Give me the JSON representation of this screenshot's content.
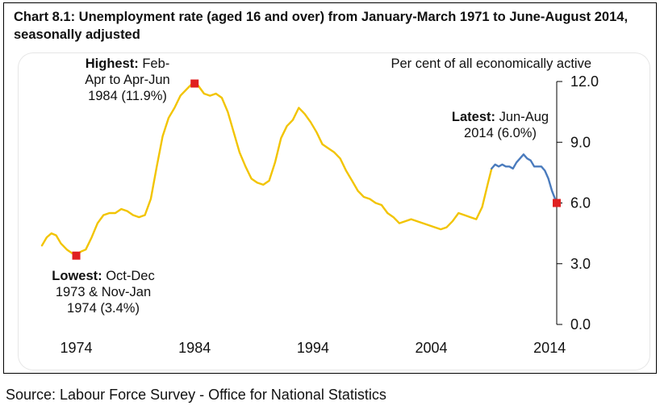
{
  "title": "Chart 8.1: Unemployment rate (aged 16 and over) from January-March 1971 to June-August 2014, seasonally adjusted",
  "source": "Source: Labour Force Survey - Office for National Statistics",
  "colors": {
    "series_main": "#f2c400",
    "series_latest": "#4a7bbd",
    "marker": "#e02020",
    "axis": "#000000"
  },
  "chart_data": {
    "type": "line",
    "title": "Chart 8.1: Unemployment rate (aged 16 and over) from January-March 1971 to June-August 2014, seasonally adjusted",
    "ylabel": "Per cent of all economically active",
    "xlabel": "",
    "ylim": [
      0,
      12
    ],
    "xlim": [
      1971.1,
      2014.6
    ],
    "y_ticks": [
      "0.0",
      "3.0",
      "6.0",
      "9.0",
      "12.0"
    ],
    "y_tick_values": [
      0,
      3,
      6,
      9,
      12
    ],
    "x_ticks": [
      "1974",
      "1984",
      "1994",
      "2004",
      "2014"
    ],
    "x_tick_values": [
      1974,
      1984,
      1994,
      2004,
      2014
    ],
    "series": [
      {
        "name": "Unemployment rate",
        "color": "#f2c400",
        "points": [
          [
            1971.1,
            3.9
          ],
          [
            1971.5,
            4.3
          ],
          [
            1971.9,
            4.5
          ],
          [
            1972.3,
            4.4
          ],
          [
            1972.7,
            4.0
          ],
          [
            1973.2,
            3.7
          ],
          [
            1973.7,
            3.5
          ],
          [
            1974.0,
            3.45
          ],
          [
            1974.4,
            3.6
          ],
          [
            1974.8,
            3.7
          ],
          [
            1975.3,
            4.3
          ],
          [
            1975.8,
            5.0
          ],
          [
            1976.3,
            5.4
          ],
          [
            1976.8,
            5.5
          ],
          [
            1977.3,
            5.5
          ],
          [
            1977.8,
            5.7
          ],
          [
            1978.3,
            5.6
          ],
          [
            1978.8,
            5.4
          ],
          [
            1979.3,
            5.3
          ],
          [
            1979.8,
            5.4
          ],
          [
            1980.3,
            6.2
          ],
          [
            1980.8,
            7.8
          ],
          [
            1981.3,
            9.3
          ],
          [
            1981.8,
            10.2
          ],
          [
            1982.3,
            10.7
          ],
          [
            1982.8,
            11.3
          ],
          [
            1983.3,
            11.6
          ],
          [
            1983.8,
            11.9
          ],
          [
            1984.3,
            11.8
          ],
          [
            1984.8,
            11.4
          ],
          [
            1985.3,
            11.3
          ],
          [
            1985.8,
            11.4
          ],
          [
            1986.3,
            11.2
          ],
          [
            1986.8,
            10.5
          ],
          [
            1987.3,
            9.5
          ],
          [
            1987.8,
            8.5
          ],
          [
            1988.3,
            7.8
          ],
          [
            1988.8,
            7.2
          ],
          [
            1989.3,
            7.0
          ],
          [
            1989.8,
            6.9
          ],
          [
            1990.3,
            7.1
          ],
          [
            1990.8,
            8.0
          ],
          [
            1991.3,
            9.2
          ],
          [
            1991.8,
            9.8
          ],
          [
            1992.3,
            10.1
          ],
          [
            1992.8,
            10.7
          ],
          [
            1993.3,
            10.4
          ],
          [
            1993.8,
            10.0
          ],
          [
            1994.3,
            9.5
          ],
          [
            1994.8,
            8.9
          ],
          [
            1995.3,
            8.7
          ],
          [
            1995.8,
            8.5
          ],
          [
            1996.3,
            8.2
          ],
          [
            1996.8,
            7.6
          ],
          [
            1997.3,
            7.1
          ],
          [
            1997.8,
            6.6
          ],
          [
            1998.3,
            6.3
          ],
          [
            1998.8,
            6.2
          ],
          [
            1999.3,
            6.0
          ],
          [
            1999.8,
            5.9
          ],
          [
            2000.3,
            5.5
          ],
          [
            2000.8,
            5.3
          ],
          [
            2001.3,
            5.0
          ],
          [
            2001.8,
            5.1
          ],
          [
            2002.3,
            5.2
          ],
          [
            2002.8,
            5.1
          ],
          [
            2003.3,
            5.0
          ],
          [
            2003.8,
            4.9
          ],
          [
            2004.3,
            4.8
          ],
          [
            2004.8,
            4.7
          ],
          [
            2005.3,
            4.8
          ],
          [
            2005.8,
            5.1
          ],
          [
            2006.3,
            5.5
          ],
          [
            2006.8,
            5.4
          ],
          [
            2007.3,
            5.3
          ],
          [
            2007.8,
            5.2
          ],
          [
            2008.3,
            5.8
          ],
          [
            2008.8,
            7.0
          ],
          [
            2009.1,
            7.7
          ]
        ]
      },
      {
        "name": "Latest period",
        "color": "#4a7bbd",
        "points": [
          [
            2009.1,
            7.7
          ],
          [
            2009.4,
            7.9
          ],
          [
            2009.7,
            7.8
          ],
          [
            2010.0,
            7.9
          ],
          [
            2010.3,
            7.8
          ],
          [
            2010.6,
            7.8
          ],
          [
            2010.9,
            7.7
          ],
          [
            2011.2,
            8.0
          ],
          [
            2011.5,
            8.2
          ],
          [
            2011.8,
            8.4
          ],
          [
            2012.1,
            8.2
          ],
          [
            2012.4,
            8.1
          ],
          [
            2012.7,
            7.8
          ],
          [
            2013.0,
            7.8
          ],
          [
            2013.3,
            7.8
          ],
          [
            2013.6,
            7.6
          ],
          [
            2013.9,
            7.2
          ],
          [
            2014.2,
            6.6
          ],
          [
            2014.6,
            6.0
          ]
        ]
      }
    ],
    "highlights": [
      {
        "name": "highest",
        "x": 1984.0,
        "y": 11.9,
        "label_bold": "Highest:",
        "label_lines": [
          "Feb-",
          "Apr to Apr-Jun",
          "1984 (11.9%)"
        ]
      },
      {
        "name": "lowest",
        "x": 1974.0,
        "y": 3.4,
        "label_bold": "Lowest:",
        "label_lines": [
          "Oct-Dec",
          "1973 & Nov-Jan",
          "1974 (3.4%)"
        ]
      },
      {
        "name": "latest",
        "x": 2014.6,
        "y": 6.0,
        "label_bold": "Latest:",
        "label_lines": [
          "Jun-Aug",
          "2014 (6.0%)"
        ]
      }
    ]
  }
}
